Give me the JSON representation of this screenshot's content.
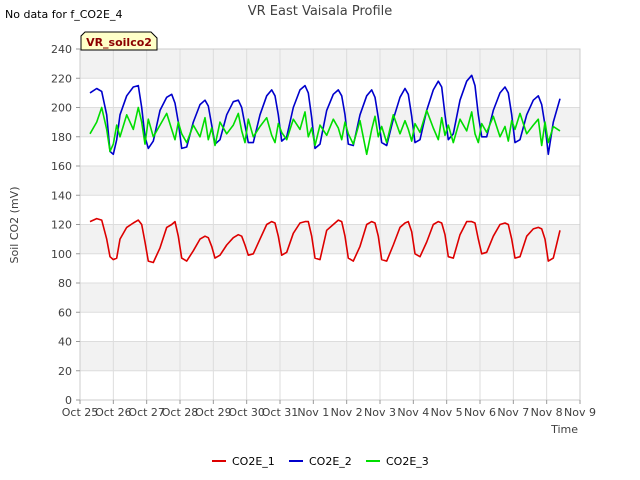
{
  "chart_data": {
    "type": "line",
    "title": "VR East Vaisala Profile",
    "no_data_note": "No data for f_CO2E_4",
    "badge": "VR_soilco2",
    "xlabel": "Time",
    "ylabel": "Soil CO2 (mV)",
    "ylim": [
      0,
      240
    ],
    "yticks": [
      0,
      20,
      40,
      60,
      80,
      100,
      120,
      140,
      160,
      180,
      200,
      220,
      240
    ],
    "xlim": [
      0,
      15
    ],
    "xtick_labels": [
      "Oct 25",
      "Oct 26",
      "Oct 27",
      "Oct 28",
      "Oct 29",
      "Oct 30",
      "Oct 31",
      "Nov 1",
      "Nov 2",
      "Nov 3",
      "Nov 4",
      "Nov 5",
      "Nov 6",
      "Nov 7",
      "Nov 8",
      "Nov 9"
    ],
    "grid": true,
    "legend_position": "bottom",
    "series": [
      {
        "name": "CO2E_1",
        "color": "#dd0000",
        "x": [
          0.3,
          0.5,
          0.65,
          0.8,
          0.9,
          1.0,
          1.1,
          1.2,
          1.4,
          1.6,
          1.75,
          1.85,
          1.95,
          2.05,
          2.2,
          2.4,
          2.6,
          2.75,
          2.85,
          2.95,
          3.05,
          3.2,
          3.4,
          3.6,
          3.75,
          3.85,
          3.95,
          4.05,
          4.2,
          4.4,
          4.6,
          4.75,
          4.85,
          4.95,
          5.05,
          5.2,
          5.4,
          5.6,
          5.75,
          5.85,
          5.95,
          6.05,
          6.2,
          6.4,
          6.6,
          6.75,
          6.85,
          6.95,
          7.05,
          7.2,
          7.4,
          7.6,
          7.75,
          7.85,
          7.95,
          8.05,
          8.2,
          8.4,
          8.6,
          8.75,
          8.85,
          8.95,
          9.05,
          9.2,
          9.4,
          9.6,
          9.75,
          9.85,
          9.95,
          10.05,
          10.2,
          10.4,
          10.6,
          10.75,
          10.85,
          10.95,
          11.05,
          11.2,
          11.4,
          11.6,
          11.75,
          11.85,
          11.95,
          12.05,
          12.2,
          12.4,
          12.6,
          12.75,
          12.85,
          12.95,
          13.05,
          13.2,
          13.4,
          13.6,
          13.75,
          13.85,
          13.95,
          14.05,
          14.2,
          14.4
        ],
        "values": [
          122,
          124,
          123,
          110,
          98,
          96,
          97,
          110,
          118,
          121,
          123,
          120,
          108,
          95,
          94,
          104,
          118,
          120,
          122,
          112,
          97,
          95,
          102,
          110,
          112,
          111,
          105,
          97,
          99,
          106,
          111,
          113,
          112,
          106,
          99,
          100,
          110,
          120,
          122,
          121,
          112,
          99,
          101,
          114,
          121,
          122,
          122,
          112,
          97,
          96,
          116,
          120,
          123,
          122,
          112,
          97,
          95,
          105,
          120,
          122,
          121,
          112,
          96,
          95,
          106,
          118,
          121,
          122,
          115,
          100,
          98,
          108,
          120,
          122,
          121,
          113,
          98,
          97,
          113,
          122,
          122,
          121,
          110,
          100,
          101,
          112,
          120,
          121,
          120,
          110,
          97,
          98,
          112,
          117,
          118,
          117,
          110,
          95,
          97,
          116
        ]
      },
      {
        "name": "CO2E_2",
        "color": "#0000cc",
        "x": [
          0.3,
          0.5,
          0.65,
          0.8,
          0.9,
          1.0,
          1.1,
          1.2,
          1.4,
          1.6,
          1.75,
          1.85,
          1.95,
          2.05,
          2.2,
          2.4,
          2.6,
          2.75,
          2.85,
          2.95,
          3.05,
          3.2,
          3.4,
          3.6,
          3.75,
          3.85,
          3.95,
          4.05,
          4.2,
          4.4,
          4.6,
          4.75,
          4.85,
          4.95,
          5.05,
          5.2,
          5.4,
          5.6,
          5.75,
          5.85,
          5.95,
          6.05,
          6.2,
          6.4,
          6.6,
          6.75,
          6.85,
          6.95,
          7.05,
          7.2,
          7.4,
          7.6,
          7.75,
          7.85,
          7.95,
          8.05,
          8.2,
          8.4,
          8.6,
          8.75,
          8.85,
          8.95,
          9.05,
          9.2,
          9.4,
          9.6,
          9.75,
          9.85,
          9.95,
          10.05,
          10.2,
          10.4,
          10.6,
          10.75,
          10.85,
          10.95,
          11.05,
          11.2,
          11.4,
          11.6,
          11.75,
          11.85,
          11.95,
          12.05,
          12.2,
          12.4,
          12.6,
          12.75,
          12.85,
          12.95,
          13.05,
          13.2,
          13.4,
          13.6,
          13.75,
          13.85,
          13.95,
          14.05,
          14.2,
          14.4
        ],
        "values": [
          210,
          213,
          211,
          195,
          170,
          168,
          178,
          195,
          208,
          214,
          215,
          200,
          180,
          172,
          177,
          198,
          207,
          209,
          203,
          190,
          172,
          173,
          190,
          202,
          205,
          201,
          188,
          175,
          178,
          195,
          204,
          205,
          200,
          188,
          176,
          176,
          195,
          208,
          212,
          208,
          195,
          177,
          180,
          200,
          212,
          215,
          210,
          193,
          172,
          175,
          198,
          209,
          212,
          208,
          195,
          175,
          174,
          195,
          208,
          212,
          207,
          193,
          176,
          174,
          192,
          207,
          213,
          209,
          194,
          176,
          178,
          198,
          212,
          218,
          214,
          195,
          178,
          182,
          205,
          218,
          222,
          215,
          195,
          180,
          180,
          198,
          210,
          214,
          210,
          195,
          176,
          178,
          195,
          205,
          208,
          202,
          188,
          168,
          190,
          206
        ]
      },
      {
        "name": "CO2E_3",
        "color": "#00dd00",
        "x": [
          0.3,
          0.5,
          0.65,
          0.8,
          0.9,
          1.0,
          1.1,
          1.2,
          1.4,
          1.6,
          1.75,
          1.85,
          1.95,
          2.05,
          2.2,
          2.4,
          2.6,
          2.75,
          2.85,
          2.95,
          3.05,
          3.2,
          3.4,
          3.6,
          3.75,
          3.85,
          3.95,
          4.05,
          4.2,
          4.4,
          4.6,
          4.75,
          4.85,
          4.95,
          5.05,
          5.2,
          5.4,
          5.6,
          5.75,
          5.85,
          5.95,
          6.05,
          6.2,
          6.4,
          6.6,
          6.75,
          6.85,
          6.95,
          7.05,
          7.2,
          7.4,
          7.6,
          7.75,
          7.85,
          7.95,
          8.05,
          8.2,
          8.4,
          8.6,
          8.75,
          8.85,
          8.95,
          9.05,
          9.2,
          9.4,
          9.6,
          9.75,
          9.85,
          9.95,
          10.05,
          10.2,
          10.4,
          10.6,
          10.75,
          10.85,
          10.95,
          11.05,
          11.2,
          11.4,
          11.6,
          11.75,
          11.85,
          11.95,
          12.05,
          12.2,
          12.4,
          12.6,
          12.75,
          12.85,
          12.95,
          13.05,
          13.2,
          13.4,
          13.6,
          13.75,
          13.85,
          13.95,
          14.05,
          14.2,
          14.4
        ],
        "values": [
          182,
          190,
          200,
          185,
          170,
          175,
          188,
          180,
          195,
          185,
          200,
          190,
          175,
          192,
          180,
          188,
          196,
          185,
          178,
          190,
          182,
          176,
          188,
          180,
          193,
          178,
          186,
          174,
          190,
          182,
          188,
          196,
          184,
          176,
          192,
          180,
          187,
          193,
          181,
          176,
          189,
          183,
          178,
          192,
          185,
          197,
          180,
          186,
          174,
          188,
          181,
          192,
          186,
          178,
          190,
          182,
          175,
          191,
          168,
          185,
          194,
          180,
          187,
          176,
          195,
          182,
          191,
          185,
          177,
          189,
          183,
          198,
          186,
          178,
          193,
          181,
          188,
          176,
          192,
          184,
          197,
          182,
          176,
          189,
          183,
          194,
          180,
          187,
          177,
          191,
          185,
          196,
          182,
          188,
          192,
          174,
          190,
          176,
          187,
          184
        ]
      }
    ]
  }
}
